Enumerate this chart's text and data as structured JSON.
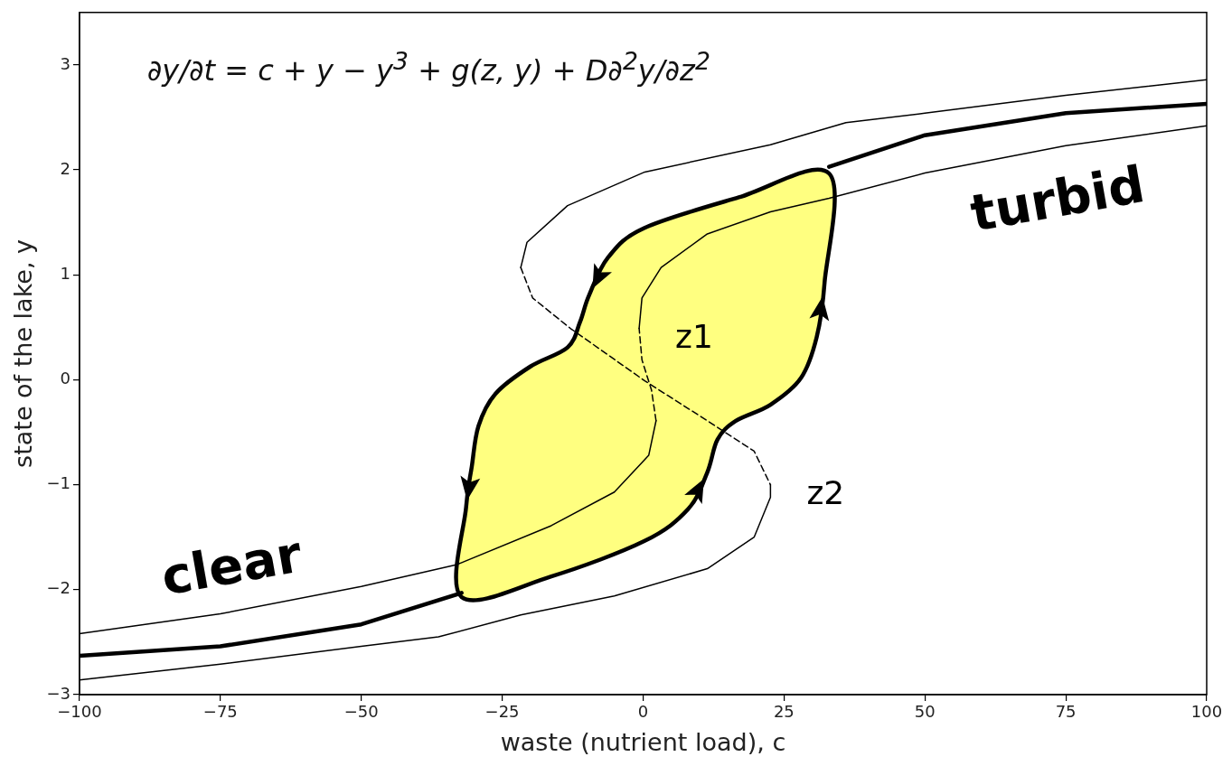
{
  "chart_data": {
    "type": "line",
    "xlabel": "waste (nutrient load), c",
    "ylabel": "state of the lake, y",
    "xlim": [
      -100,
      100
    ],
    "xticks": [
      {
        "value": -100,
        "label": "−100"
      },
      {
        "value": -75,
        "label": "−75"
      },
      {
        "value": -50,
        "label": "−50"
      },
      {
        "value": -25,
        "label": "−25"
      },
      0,
      25,
      50,
      75,
      100
    ],
    "ylim": [
      -3,
      3.5
    ],
    "yticks": [
      {
        "value": -3,
        "label": "−3"
      },
      {
        "value": -2,
        "label": "−2"
      },
      {
        "value": -1,
        "label": "−1"
      },
      0,
      1,
      2,
      3
    ],
    "series": [
      {
        "color": "#000000",
        "x": [
          -21.7,
          -20.6,
          -13.4,
          0.3,
          22.6,
          36,
          50,
          75,
          100
        ],
        "values": [
          1.07,
          1.31,
          1.66,
          1.98,
          2.24,
          2.45,
          2.54,
          2.71,
          2.86
        ]
      },
      {
        "color": "#000000",
        "line_style": "dashed",
        "x": [
          -21.7,
          -19.6,
          -12.9,
          0.3,
          11.4,
          19.7,
          22.6
        ],
        "values": [
          1.07,
          0.78,
          0.49,
          -0.01,
          -0.39,
          -0.68,
          -1.0
        ]
      },
      {
        "name": "z2",
        "color": "#000000",
        "x": [
          22.6,
          22.6,
          19.7,
          11.4,
          -5.1,
          -21.7,
          -36.3,
          -50,
          -75,
          -100
        ],
        "values": [
          -1.0,
          -1.12,
          -1.5,
          -1.8,
          -2.06,
          -2.24,
          -2.45,
          -2.54,
          -2.71,
          -2.86
        ]
      },
      {
        "color": "#000000",
        "x": [
          -100,
          -75,
          -50,
          -33,
          -16.3,
          -5.1,
          1,
          2.3
        ],
        "values": [
          -2.42,
          -2.23,
          -1.97,
          -1.76,
          -1.39,
          -1.07,
          -0.72,
          -0.39
        ]
      },
      {
        "color": "#000000",
        "line_style": "dashed",
        "x": [
          2.3,
          1.5,
          -0.2,
          -0.7
        ],
        "values": [
          -0.39,
          -0.1,
          0.19,
          0.49
        ]
      },
      {
        "name": "z1",
        "color": "#000000",
        "x": [
          -0.7,
          -0.2,
          3.2,
          11.4,
          22.6,
          33,
          50,
          75,
          100
        ],
        "values": [
          0.49,
          0.78,
          1.07,
          1.39,
          1.6,
          1.73,
          1.97,
          2.23,
          2.42
        ]
      },
      {
        "color": "#000000",
        "x": [
          -100,
          -75,
          -50,
          -32.2
        ],
        "values": [
          -2.63,
          -2.54,
          -2.33,
          -2.03
        ]
      },
      {
        "color": "#000000",
        "x": [
          33,
          50,
          75,
          100
        ],
        "values": [
          2.03,
          2.33,
          2.54,
          2.63
        ]
      }
    ],
    "annotations": [
      "∂y/∂t = c + y − y$^{3}$ + g(z, y) + D∂$^{2}$y/∂z$^{2}$",
      "clear",
      "turbid"
    ]
  }
}
